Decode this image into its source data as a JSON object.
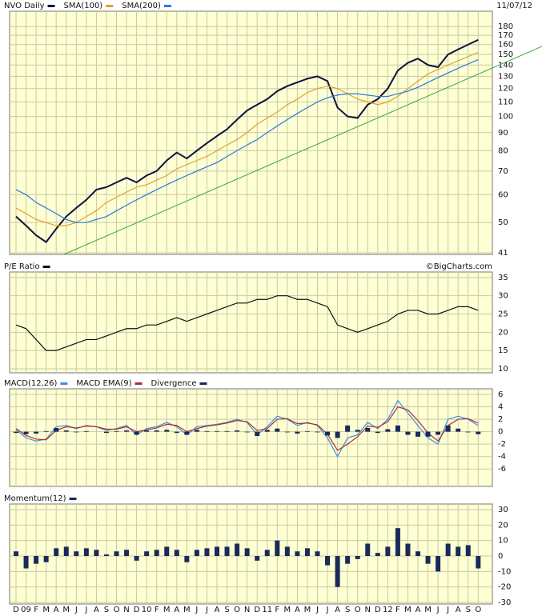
{
  "chart_data": [
    {
      "type": "line",
      "log_scale": true,
      "date": "11/07/12",
      "series": [
        {
          "name": "NVO Daily",
          "color": "#101040",
          "values": [
            52,
            49,
            46,
            44,
            48,
            52,
            55,
            58,
            62,
            63,
            65,
            67,
            65,
            68,
            70,
            75,
            79,
            76,
            80,
            84,
            88,
            92,
            98,
            104,
            108,
            112,
            118,
            122,
            125,
            128,
            130,
            126,
            106,
            100,
            99,
            108,
            112,
            120,
            135,
            142,
            146,
            140,
            138,
            150,
            155,
            160,
            165
          ]
        },
        {
          "name": "SMA(100)",
          "color": "#e0a030",
          "values": [
            55,
            53,
            51,
            50,
            49,
            49,
            50,
            52,
            54,
            57,
            59,
            61,
            63,
            64,
            66,
            68,
            71,
            73,
            75,
            77,
            80,
            83,
            86,
            90,
            95,
            99,
            103,
            108,
            112,
            117,
            120,
            122,
            120,
            116,
            112,
            110,
            108,
            110,
            114,
            120,
            126,
            132,
            136,
            140,
            144,
            148,
            152
          ]
        },
        {
          "name": "SMA(200)",
          "color": "#2a7ae0",
          "values": [
            62,
            60,
            57,
            55,
            53,
            51,
            50,
            50,
            51,
            52,
            54,
            56,
            58,
            60,
            62,
            64,
            66,
            68,
            70,
            72,
            74,
            77,
            80,
            83,
            86,
            90,
            94,
            98,
            102,
            106,
            110,
            113,
            115,
            116,
            116,
            115,
            114,
            114,
            116,
            118,
            121,
            125,
            129,
            133,
            137,
            141,
            145
          ]
        }
      ],
      "ylim": [
        40.6,
        199
      ],
      "yticks": [
        41,
        50,
        60,
        70,
        80,
        90,
        100,
        110,
        120,
        130,
        140,
        150,
        160,
        170,
        180
      ],
      "grid": true
    },
    {
      "type": "line",
      "source": "©BigCharts.com",
      "series": [
        {
          "name": "P/E Ratio",
          "color": "#101010",
          "values": [
            22,
            21,
            18,
            15,
            15,
            16,
            17,
            18,
            18,
            19,
            20,
            21,
            21,
            22,
            22,
            23,
            24,
            23,
            24,
            25,
            26,
            27,
            28,
            28,
            29,
            29,
            30,
            30,
            29,
            29,
            28,
            27,
            22,
            21,
            20,
            21,
            22,
            23,
            25,
            26,
            26,
            25,
            25,
            26,
            27,
            27,
            26
          ]
        }
      ],
      "ylim": [
        8.9,
        36.5
      ],
      "yticks": [
        10,
        15,
        20,
        25,
        30,
        35
      ],
      "grid": true
    },
    {
      "type": "line",
      "series": [
        {
          "name": "MACD(12,26)",
          "color": "#3a8ee6",
          "values": [
            0.3,
            -1,
            -1.5,
            -1.2,
            0.8,
            1,
            0.5,
            1,
            0.8,
            0.2,
            0.5,
            1,
            -0.5,
            0.5,
            0.8,
            1.5,
            0.8,
            -0.5,
            0.8,
            1,
            1.2,
            1.5,
            2,
            1.5,
            -0.5,
            0.8,
            2.5,
            2,
            1,
            1.5,
            1,
            -1,
            -4,
            -1,
            -0.5,
            1.5,
            0.5,
            2,
            5,
            3,
            1,
            -1,
            -2,
            2,
            2.5,
            2,
            1
          ]
        },
        {
          "name": "MACD EMA(9)",
          "color": "#a83030",
          "values": [
            0.5,
            -0.6,
            -1.2,
            -1.3,
            0.2,
            0.8,
            0.6,
            0.9,
            0.8,
            0.4,
            0.4,
            0.8,
            0,
            0.3,
            0.6,
            1.2,
            1,
            0,
            0.5,
            0.9,
            1.1,
            1.4,
            1.8,
            1.6,
            0.2,
            0.5,
            2,
            2.1,
            1.3,
            1.4,
            1.1,
            -0.4,
            -3,
            -2,
            -0.8,
            0.9,
            0.7,
            1.6,
            4,
            3.5,
            1.8,
            -0.2,
            -1.5,
            1,
            2,
            2.1,
            1.4
          ]
        },
        {
          "name": "Divergence",
          "color": "#1a2a5a",
          "style": "bar",
          "values": [
            -0.2,
            -0.4,
            -0.3,
            0.1,
            0.6,
            0.2,
            -0.1,
            0.1,
            0,
            -0.2,
            0.1,
            0.2,
            -0.5,
            0.2,
            0.2,
            0.3,
            -0.2,
            -0.5,
            0.3,
            0.1,
            0.1,
            0.1,
            0.2,
            -0.1,
            -0.7,
            0.3,
            0.5,
            -0.1,
            -0.3,
            0.1,
            -0.1,
            -0.6,
            -1,
            1,
            0.3,
            0.6,
            -0.2,
            0.4,
            1,
            -0.5,
            -0.8,
            -0.8,
            -0.5,
            1,
            0.5,
            -0.1,
            -0.4
          ]
        }
      ],
      "ylim": [
        -8.8,
        6.9
      ],
      "yticks": [
        -6,
        -4,
        -2,
        0,
        2,
        4,
        6
      ],
      "grid": true
    },
    {
      "type": "bar",
      "categories": [
        "D",
        "09",
        "F",
        "M",
        "A",
        "M",
        "J",
        "J",
        "A",
        "S",
        "O",
        "N",
        "D",
        "10",
        "F",
        "M",
        "A",
        "M",
        "J",
        "J",
        "A",
        "S",
        "O",
        "N",
        "D",
        "11",
        "F",
        "M",
        "A",
        "M",
        "J",
        "J",
        "A",
        "S",
        "O",
        "N",
        "D",
        "12",
        "F",
        "M",
        "A",
        "M",
        "J",
        "J",
        "A",
        "S",
        "O"
      ],
      "series": [
        {
          "name": "Momentum(12)",
          "color": "#1a2a5a",
          "style": "bar",
          "values": [
            3,
            -8,
            -5,
            -4,
            5,
            6,
            3,
            5,
            4,
            1,
            3,
            4,
            -3,
            3,
            4,
            6,
            4,
            -4,
            4,
            5,
            6,
            6,
            8,
            5,
            -3,
            4,
            10,
            6,
            3,
            5,
            3,
            -6,
            -20,
            -5,
            -2,
            8,
            2,
            6,
            18,
            8,
            3,
            -5,
            -10,
            8,
            6,
            7,
            -8
          ]
        }
      ],
      "ylim": [
        -31,
        33.6
      ],
      "yticks": [
        -30,
        -20,
        -10,
        0,
        10,
        20,
        30
      ],
      "grid": true
    }
  ]
}
